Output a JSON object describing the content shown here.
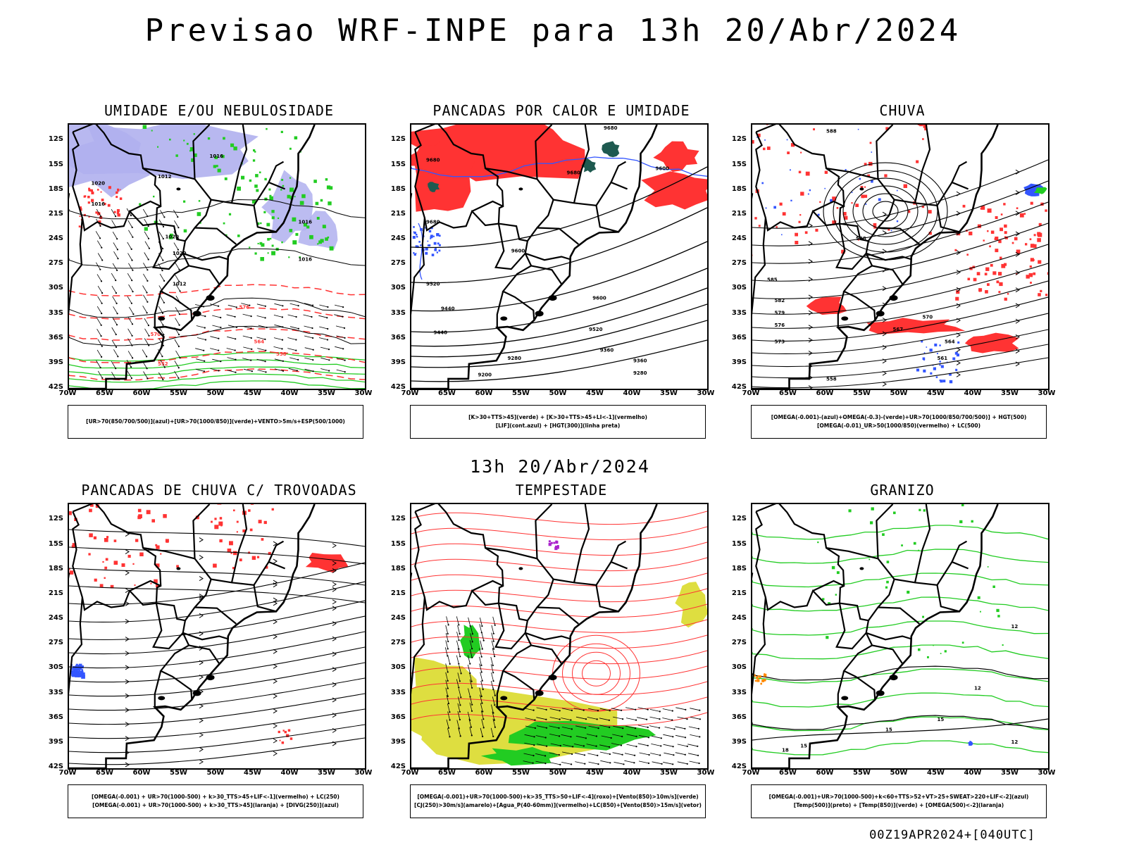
{
  "header": {
    "title": "Previsao WRF-INPE  para 13h 20/Abr/2024",
    "mid_title": "13h 20/Abr/2024",
    "footer": "00Z19APR2024+[040UTC]"
  },
  "axes": {
    "lat_labels": [
      "12S",
      "15S",
      "18S",
      "21S",
      "24S",
      "27S",
      "30S",
      "33S",
      "36S",
      "39S",
      "42S"
    ],
    "lon_labels": [
      "70W",
      "65W",
      "60W",
      "55W",
      "50W",
      "45W",
      "40W",
      "35W",
      "30W"
    ]
  },
  "colors": {
    "green": "#22cc22",
    "red": "#ff3333",
    "blue": "#3355ff",
    "lavender": "#b0b0ee",
    "yellow": "#dede40",
    "darkgreen": "#1e5a50",
    "black": "#000000"
  },
  "panels": [
    {
      "title": "UMIDADE E/OU NEBULOSIDADE",
      "legend": [
        "[UR>70(850/700/500)](azul)+[UR>70(1000/850)](verde)+VENTO>5m/s+ESP(500/1000)"
      ],
      "contour_labels": [
        "1016",
        "1012",
        "1020",
        "1016",
        "1020",
        "1016",
        "1020",
        "1016",
        "1012",
        "576",
        "570",
        "564",
        "558",
        "552"
      ]
    },
    {
      "title": "PANCADAS POR CALOR E UMIDADE",
      "legend": [
        "[K>30+TTS>45](verde) + [K>30+TTS>45+LI<-1](vermelho)",
        "[LIF](cont.azul) + [HGT(300)](linha preta)"
      ],
      "contour_labels": [
        "9680",
        "9680",
        "9680",
        "9600",
        "9680",
        "9600",
        "9520",
        "9600",
        "9440",
        "9520",
        "9440",
        "9360",
        "9280",
        "9360",
        "9200",
        "9280"
      ]
    },
    {
      "title": "CHUVA",
      "legend": [
        "[OMEGA(-0.001)-(azul)+OMEGA(-0.3)-(verde)+UR>70(1000/850/700/500)] + HGT(500)",
        "[OMEGA(-0.01)_UR>50(1000/850)(vermelho) + LC(500)"
      ],
      "contour_labels": [
        "588",
        "588",
        "585",
        "582",
        "579",
        "576",
        "573",
        "570",
        "567",
        "564",
        "561",
        "558"
      ]
    },
    {
      "title": "PANCADAS DE CHUVA C/ TROVOADAS",
      "legend": [
        "[OMEGA(-0.001) + UR>70(1000-500) + k>30_TTS>45+LIF<-1](vermelho) + LC(250)",
        "[OMEGA(-0.001) + UR>70(1000-500) + k>30_TTS>45](laranja) + [DIVG(250)](azul)"
      ],
      "contour_labels": []
    },
    {
      "title": "TEMPESTADE",
      "legend": [
        "[OMEGA(-0.001)+UR>70(1000-500)+k>35_TTS>50+LIF<-4](roxo)+[Vento(850)>10m/s](verde)",
        "[CJ(250)>30m/s](amarelo)+[Agua_P(40-60mm)](vermelho)+LC(850)+[Vento(850)>15m/s](vetor)"
      ],
      "contour_labels": []
    },
    {
      "title": "GRANIZO",
      "legend": [
        "[OMEGA(-0.001)+UR>70(1000-500)+k<60+TTS>52+VT>25+SWEAT>220+LIF<-2](azul)",
        "[Temp(500)](preto) + [Temp(850)](verde) + [OMEGA(500)<-2](laranja)"
      ],
      "contour_labels": [
        "12",
        "15",
        "12",
        "15",
        "18",
        "12",
        "15"
      ]
    }
  ]
}
